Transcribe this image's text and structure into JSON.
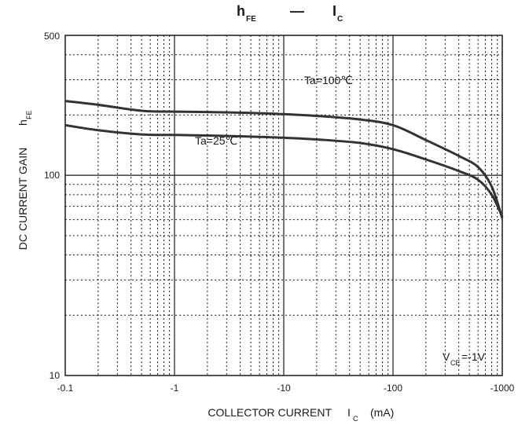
{
  "chart_data": {
    "type": "line",
    "title": {
      "main": "h",
      "main_sub": "FE",
      "dash": "—",
      "second": "I",
      "second_sub": "C"
    },
    "ylabel": {
      "main": "DC CURRENT GAIN",
      "symbol": "h",
      "symbol_sub": "FE"
    },
    "xlabel": {
      "main": "COLLECTOR CURRENT",
      "symbol": "I",
      "symbol_sub": "C",
      "unit": "(mA)"
    },
    "x_scale": "log",
    "y_scale": "log",
    "xlim": [
      -0.1,
      -1000
    ],
    "ylim": [
      10,
      500
    ],
    "grid": true,
    "x_tick_labels": [
      "-0.1",
      "-1",
      "-10",
      "-100",
      "-1000"
    ],
    "y_tick_labels": [
      "10",
      "100",
      "500"
    ],
    "annotation": {
      "prefix": "V",
      "sub": "CE",
      "suffix": "=-1V"
    },
    "series": [
      {
        "name": "Ta=100℃",
        "x": [
          -0.1,
          -0.2,
          -0.5,
          -1,
          -2,
          -5,
          -10,
          -20,
          -50,
          -100,
          -200,
          -400,
          -600,
          -800,
          -1000
        ],
        "y": [
          235,
          225,
          210,
          208,
          207,
          205,
          202,
          198,
          190,
          178,
          150,
          125,
          110,
          88,
          61
        ]
      },
      {
        "name": "Ta=25℃",
        "x": [
          -0.1,
          -0.2,
          -0.5,
          -1,
          -2,
          -5,
          -10,
          -20,
          -50,
          -100,
          -200,
          -400,
          -600,
          -800,
          -1000
        ],
        "y": [
          178,
          168,
          160,
          159,
          158,
          156,
          154,
          151,
          145,
          135,
          120,
          105,
          95,
          80,
          62
        ]
      }
    ]
  }
}
